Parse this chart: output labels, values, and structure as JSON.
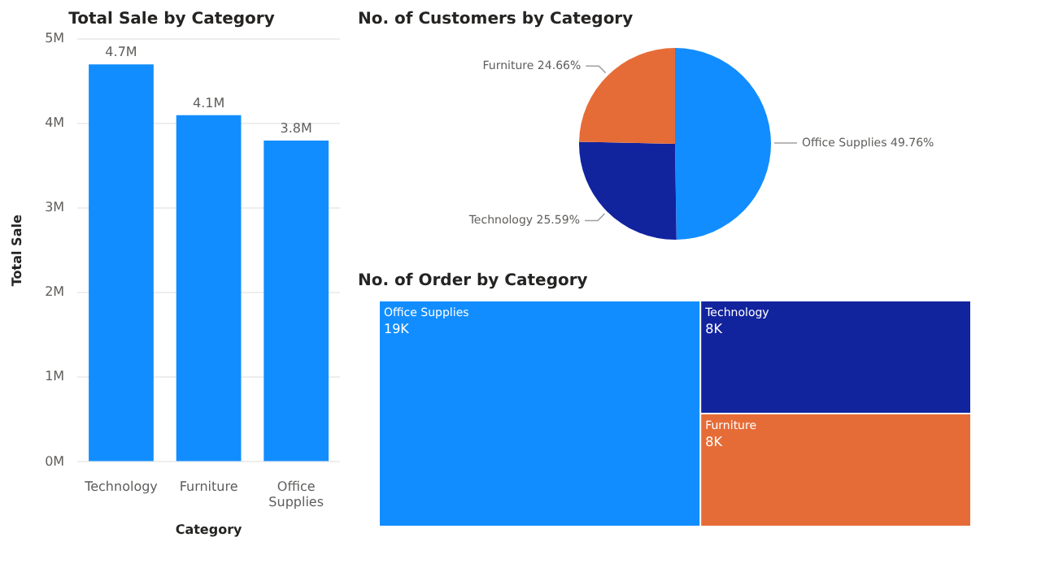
{
  "chart_data": [
    {
      "type": "bar",
      "title": "Total Sale by Category",
      "xlabel": "Category",
      "ylabel": "Total Sale",
      "categories": [
        "Technology",
        "Furniture",
        "Office Supplies"
      ],
      "values": [
        4.7,
        4.1,
        3.8
      ],
      "value_labels": [
        "4.7M",
        "4.1M",
        "3.8M"
      ],
      "color": "#118dff",
      "ylim": [
        0,
        5
      ],
      "yticks": [
        {
          "value": 0,
          "label": "0M"
        },
        {
          "value": 1,
          "label": "1M"
        },
        {
          "value": 2,
          "label": "2M"
        },
        {
          "value": 3,
          "label": "3M"
        },
        {
          "value": 4,
          "label": "4M"
        },
        {
          "value": 5,
          "label": "5M"
        }
      ],
      "grid": "y",
      "legend": false
    },
    {
      "type": "pie",
      "title": "No. of Customers by Category",
      "categories": [
        "Office Supplies",
        "Technology",
        "Furniture"
      ],
      "values": [
        49.76,
        25.59,
        24.66
      ],
      "value_labels": [
        "49.76%",
        "25.59%",
        "24.66%"
      ],
      "colors": [
        "#118dff",
        "#12239e",
        "#e66c37"
      ],
      "legend": false
    },
    {
      "type": "other",
      "title": "No. of Order by Category",
      "categories": [
        "Office Supplies",
        "Technology",
        "Furniture"
      ],
      "values": [
        19,
        8,
        8
      ],
      "value_labels": [
        "19K",
        "8K",
        "8K"
      ],
      "colors": [
        "#118dff",
        "#12239e",
        "#e66c37"
      ]
    }
  ]
}
